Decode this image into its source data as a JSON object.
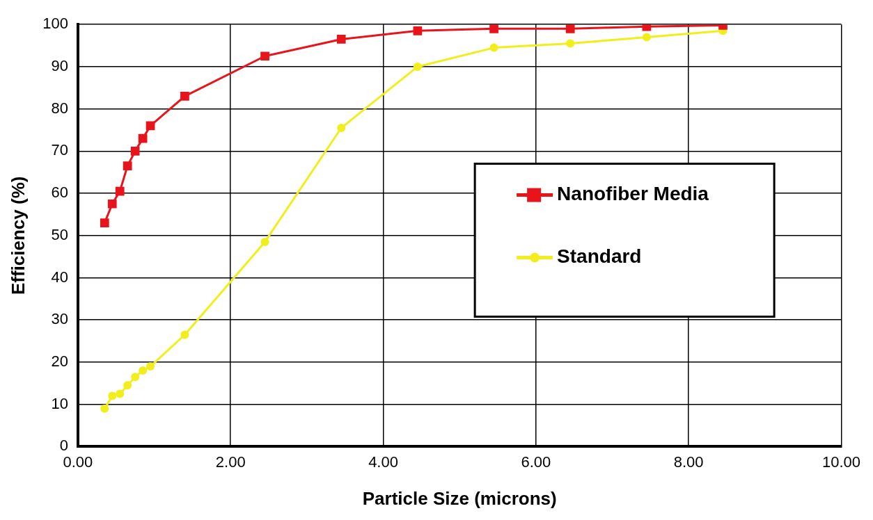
{
  "chart_data": {
    "type": "line",
    "xlabel": "Particle Size (microns)",
    "ylabel": "Efficiency (%)",
    "x": [
      0.35,
      0.45,
      0.55,
      0.65,
      0.75,
      0.85,
      0.95,
      1.4,
      2.45,
      3.45,
      4.45,
      5.45,
      6.45,
      7.45,
      8.45
    ],
    "series": [
      {
        "name": "Nanofiber Media",
        "color": "#e8141c",
        "marker": "square",
        "values": [
          53,
          57.5,
          60.5,
          66.5,
          70,
          73,
          76,
          83,
          92.5,
          96.5,
          98.5,
          99,
          99,
          99.5,
          99.8
        ]
      },
      {
        "name": "Standard",
        "color": "#f2ee1c",
        "marker": "circle",
        "values": [
          9,
          12,
          12.5,
          14.5,
          16.5,
          18,
          19,
          26.5,
          48.5,
          75.5,
          90,
          94.5,
          95.5,
          97,
          98.5
        ]
      }
    ],
    "xlim": [
      0,
      10
    ],
    "xticks": [
      {
        "value": 0,
        "label": "0.00"
      },
      {
        "value": 2,
        "label": "2.00"
      },
      {
        "value": 4,
        "label": "4.00"
      },
      {
        "value": 6,
        "label": "6.00"
      },
      {
        "value": 8,
        "label": "8.00"
      },
      {
        "value": 10,
        "label": "10.00"
      }
    ],
    "ylim": [
      0,
      100
    ],
    "yticks": [
      0,
      10,
      20,
      30,
      40,
      50,
      60,
      70,
      80,
      90,
      100
    ],
    "grid": true,
    "legend": "right"
  }
}
